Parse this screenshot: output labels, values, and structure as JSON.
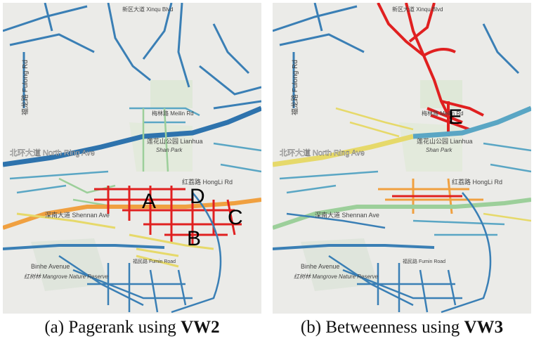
{
  "panels": [
    {
      "id": "a",
      "caption_text": "(a) Pagerank using ",
      "caption_bold": "VW2",
      "markers": [
        "A",
        "B",
        "C",
        "D"
      ],
      "labels": {
        "fulong": "福龙路 Fulong Rd",
        "north_ring": "北环大道 North Ring Ave",
        "lianhua": "莲花山公园 Lianhua",
        "shan_park": "Shan Park",
        "meilin": "梅林路 Meilin Rd",
        "hongli": "红荔路 HongLi Rd",
        "shennan": "深南大道 Shennan Ave",
        "binhe": "Binhe Avenue",
        "fumin": "福民路 Fumin Road",
        "mangrove": "红树林 Mangrove Nature Reserve",
        "xinqu": "新区大道 Xinqu Blvd"
      }
    },
    {
      "id": "b",
      "caption_text": "(b) Betweenness using ",
      "caption_bold": "VW3",
      "markers": [
        "E"
      ],
      "labels": {
        "fulong": "福龙路 Fulong Rd",
        "north_ring": "北环大道 North Ring Ave",
        "lianhua": "莲花山公园 Lianhua",
        "shan_park": "Shan Park",
        "meilin": "梅林路 Meilin Rd",
        "hongli": "红荔路 HongLi Rd",
        "shennan": "深南大道 Shennan Ave",
        "binhe": "Binhe Avenue",
        "fumin": "福民路 Fumin Road",
        "mangrove": "红树林 Mangrove Nature Reserve",
        "xinqu": "新区大道 Xinqu Blvd"
      }
    }
  ],
  "colors": {
    "low": "#3a7fb5",
    "low_mid": "#5aa6c4",
    "mid": "#9ccf9a",
    "mid_high": "#e6d96a",
    "high_mid": "#f0a040",
    "high": "#e02020",
    "background": "#ebebe8",
    "park": "#dfe8d8"
  }
}
